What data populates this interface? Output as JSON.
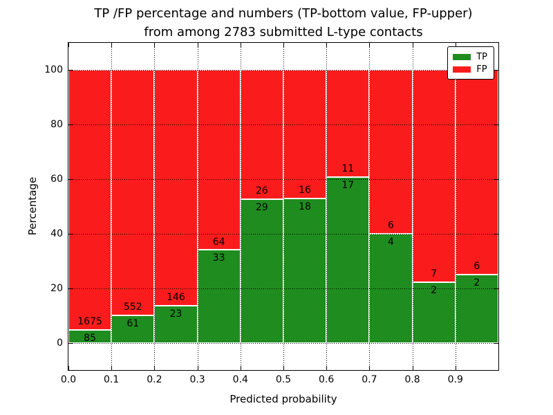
{
  "chart_data": {
    "type": "bar",
    "stacked": true,
    "units": "percent",
    "title_lines": [
      "TP /FP percentage and numbers (TP-bottom value, FP-upper)",
      "from among 2783 submitted L-type contacts"
    ],
    "xlabel": "Predicted probability",
    "ylabel": "Percentage",
    "total_submitted_contacts": 2783,
    "categories": [
      "0.0-0.1",
      "0.1-0.2",
      "0.2-0.3",
      "0.3-0.4",
      "0.4-0.5",
      "0.5-0.6",
      "0.6-0.7",
      "0.7-0.8",
      "0.8-0.9",
      "0.9-1.0"
    ],
    "bin_width": 0.1,
    "series": [
      {
        "name": "TP",
        "color": "#1f8c1f",
        "counts": [
          85,
          61,
          23,
          33,
          29,
          18,
          17,
          4,
          2,
          2
        ],
        "percent": [
          4.83,
          9.95,
          13.61,
          34.02,
          52.73,
          52.94,
          60.71,
          40.0,
          22.22,
          25.0
        ]
      },
      {
        "name": "FP",
        "color": "#fa1c1c",
        "counts": [
          1675,
          552,
          146,
          64,
          26,
          16,
          11,
          6,
          7,
          6
        ],
        "percent": [
          95.17,
          90.05,
          86.39,
          65.98,
          47.27,
          47.06,
          39.29,
          60.0,
          77.78,
          75.0
        ]
      }
    ],
    "xticks": [
      "0.0",
      "0.1",
      "0.2",
      "0.3",
      "0.4",
      "0.5",
      "0.6",
      "0.7",
      "0.8",
      "0.9"
    ],
    "yticks": [
      0,
      20,
      40,
      60,
      80,
      100
    ],
    "xlim": [
      0.0,
      1.0
    ],
    "ylim": [
      -10,
      110
    ],
    "grid": "dotted-black-both-axes",
    "bar_edge_color": "#ffffff",
    "legend_position": "upper-right"
  }
}
